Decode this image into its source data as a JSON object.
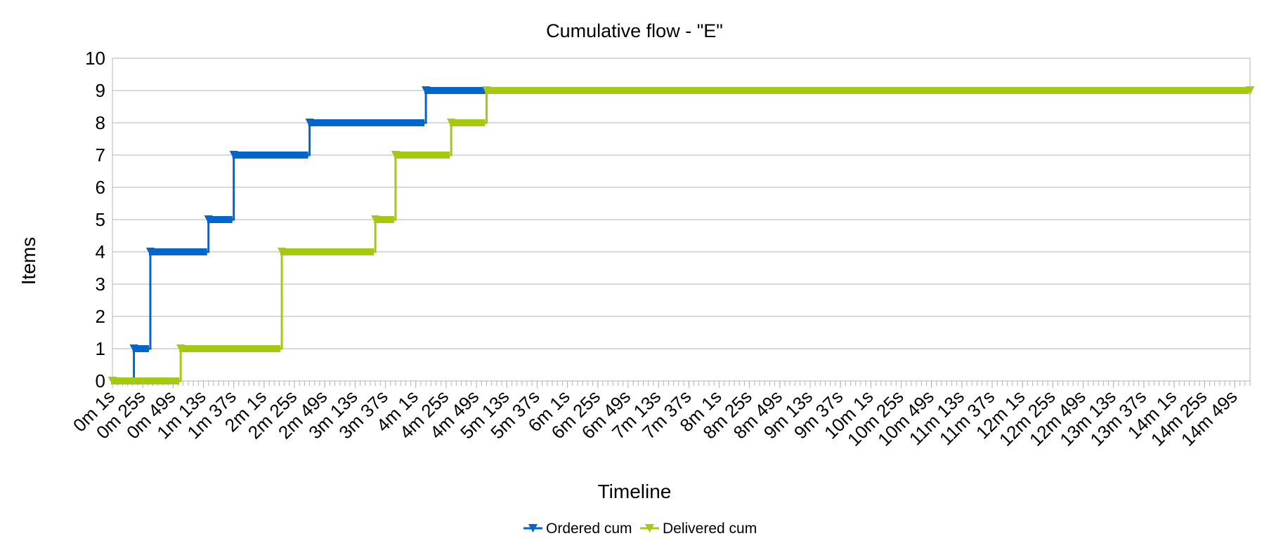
{
  "chart_data": {
    "type": "line",
    "title": "Cumulative flow - \"E\"",
    "xlabel": "Timeline",
    "ylabel": "Items",
    "ylim": [
      0,
      10
    ],
    "yticks": [
      0,
      1,
      2,
      3,
      4,
      5,
      6,
      7,
      8,
      9,
      10
    ],
    "grid": true,
    "legend_position": "bottom",
    "x_unit": "seconds",
    "x_range": [
      1,
      901
    ],
    "x_tick_labels": [
      "0m 1s",
      "0m 25s",
      "0m 49s",
      "1m 13s",
      "1m 37s",
      "2m 1s",
      "2m 25s",
      "2m 49s",
      "3m 13s",
      "3m 37s",
      "4m 1s",
      "4m 25s",
      "4m 49s",
      "5m 13s",
      "5m 37s",
      "6m 1s",
      "6m 25s",
      "6m 49s",
      "7m 13s",
      "7m 37s",
      "8m 1s",
      "8m 25s",
      "8m 49s",
      "9m 13s",
      "9m 37s",
      "10m 1s",
      "10m 25s",
      "10m 49s",
      "11m 13s",
      "11m 37s",
      "12m 1s",
      "12m 25s",
      "12m 49s",
      "13m 13s",
      "13m 37s",
      "14m 1s",
      "14m 25s",
      "14m 49s"
    ],
    "series": [
      {
        "name": "Ordered cum",
        "color": "#0066cc",
        "marker": "triangle-down",
        "steps": [
          [
            1,
            0
          ],
          [
            18,
            1
          ],
          [
            31,
            4
          ],
          [
            77,
            5
          ],
          [
            97,
            7
          ],
          [
            157,
            8
          ],
          [
            249,
            9
          ],
          [
            901,
            9
          ]
        ]
      },
      {
        "name": "Delivered cum",
        "color": "#a5c90f",
        "marker": "triangle-down",
        "steps": [
          [
            1,
            0
          ],
          [
            55,
            1
          ],
          [
            135,
            4
          ],
          [
            209,
            5
          ],
          [
            225,
            7
          ],
          [
            269,
            8
          ],
          [
            297,
            9
          ],
          [
            901,
            9
          ]
        ]
      }
    ]
  }
}
